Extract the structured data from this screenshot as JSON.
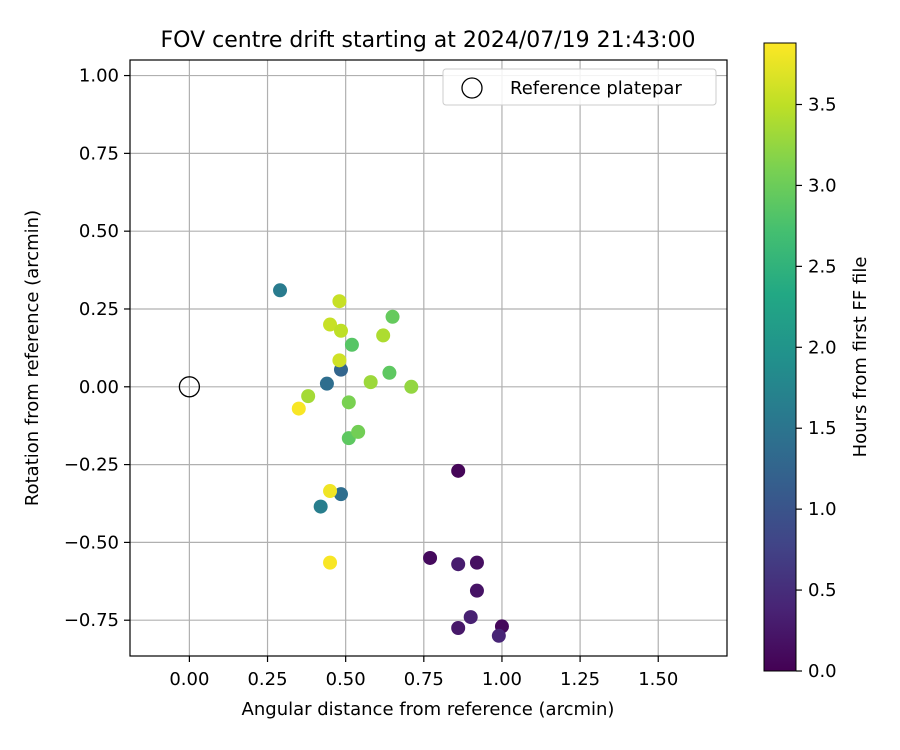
{
  "chart_data": {
    "type": "scatter",
    "title": "FOV centre drift starting at 2024/07/19 21:43:00",
    "xlabel": "Angular distance from reference (arcmin)",
    "ylabel": "Rotation from reference (arcmin)",
    "xlim": [
      -0.19,
      1.72
    ],
    "ylim": [
      -0.865,
      1.05
    ],
    "xticks": [
      0.0,
      0.25,
      0.5,
      0.75,
      1.0,
      1.25,
      1.5
    ],
    "xtick_labels": [
      "0.00",
      "0.25",
      "0.50",
      "0.75",
      "1.00",
      "1.25",
      "1.50"
    ],
    "yticks": [
      -0.75,
      -0.5,
      -0.25,
      0.0,
      0.25,
      0.5,
      0.75,
      1.0
    ],
    "ytick_labels": [
      "−0.75",
      "−0.50",
      "−0.25",
      "0.00",
      "0.25",
      "0.50",
      "0.75",
      "1.00"
    ],
    "grid": true,
    "legend_position": "top-right",
    "reference": {
      "name": "Reference platepar",
      "x": 0.0,
      "y": 0.0
    },
    "colorbar": {
      "label": "Hours from first FF file",
      "min": 0.0,
      "max": 3.88,
      "ticks": [
        0.0,
        0.5,
        1.0,
        1.5,
        2.0,
        2.5,
        3.0,
        3.5
      ],
      "tick_labels": [
        "0.0",
        "0.5",
        "1.0",
        "1.5",
        "2.0",
        "2.5",
        "3.0",
        "3.5"
      ],
      "colormap": "viridis"
    },
    "points": [
      {
        "x": 0.86,
        "y": -0.27,
        "hours": 0.05
      },
      {
        "x": 0.77,
        "y": -0.55,
        "hours": 0.1
      },
      {
        "x": 0.86,
        "y": -0.57,
        "hours": 0.3
      },
      {
        "x": 0.92,
        "y": -0.565,
        "hours": 0.15
      },
      {
        "x": 0.92,
        "y": -0.655,
        "hours": 0.2
      },
      {
        "x": 0.9,
        "y": -0.74,
        "hours": 0.35
      },
      {
        "x": 0.86,
        "y": -0.775,
        "hours": 0.25
      },
      {
        "x": 1.0,
        "y": -0.77,
        "hours": 0.08
      },
      {
        "x": 0.99,
        "y": -0.8,
        "hours": 0.4
      },
      {
        "x": 0.29,
        "y": 0.31,
        "hours": 1.6
      },
      {
        "x": 0.44,
        "y": 0.01,
        "hours": 1.4
      },
      {
        "x": 0.485,
        "y": 0.055,
        "hours": 1.25
      },
      {
        "x": 0.485,
        "y": -0.345,
        "hours": 1.4
      },
      {
        "x": 0.42,
        "y": -0.385,
        "hours": 1.65
      },
      {
        "x": 0.52,
        "y": 0.135,
        "hours": 2.85
      },
      {
        "x": 0.65,
        "y": 0.225,
        "hours": 2.95
      },
      {
        "x": 0.64,
        "y": 0.045,
        "hours": 2.9
      },
      {
        "x": 0.51,
        "y": -0.05,
        "hours": 3.1
      },
      {
        "x": 0.51,
        "y": -0.165,
        "hours": 2.9
      },
      {
        "x": 0.54,
        "y": -0.145,
        "hours": 3.05
      },
      {
        "x": 0.38,
        "y": -0.03,
        "hours": 3.35
      },
      {
        "x": 0.58,
        "y": 0.015,
        "hours": 3.3
      },
      {
        "x": 0.71,
        "y": 0.0,
        "hours": 3.25
      },
      {
        "x": 0.48,
        "y": 0.275,
        "hours": 3.55
      },
      {
        "x": 0.45,
        "y": 0.2,
        "hours": 3.55
      },
      {
        "x": 0.485,
        "y": 0.18,
        "hours": 3.5
      },
      {
        "x": 0.62,
        "y": 0.165,
        "hours": 3.4
      },
      {
        "x": 0.48,
        "y": 0.085,
        "hours": 3.6
      },
      {
        "x": 0.35,
        "y": -0.07,
        "hours": 3.85
      },
      {
        "x": 0.45,
        "y": -0.335,
        "hours": 3.8
      },
      {
        "x": 0.45,
        "y": -0.565,
        "hours": 3.85
      }
    ]
  }
}
